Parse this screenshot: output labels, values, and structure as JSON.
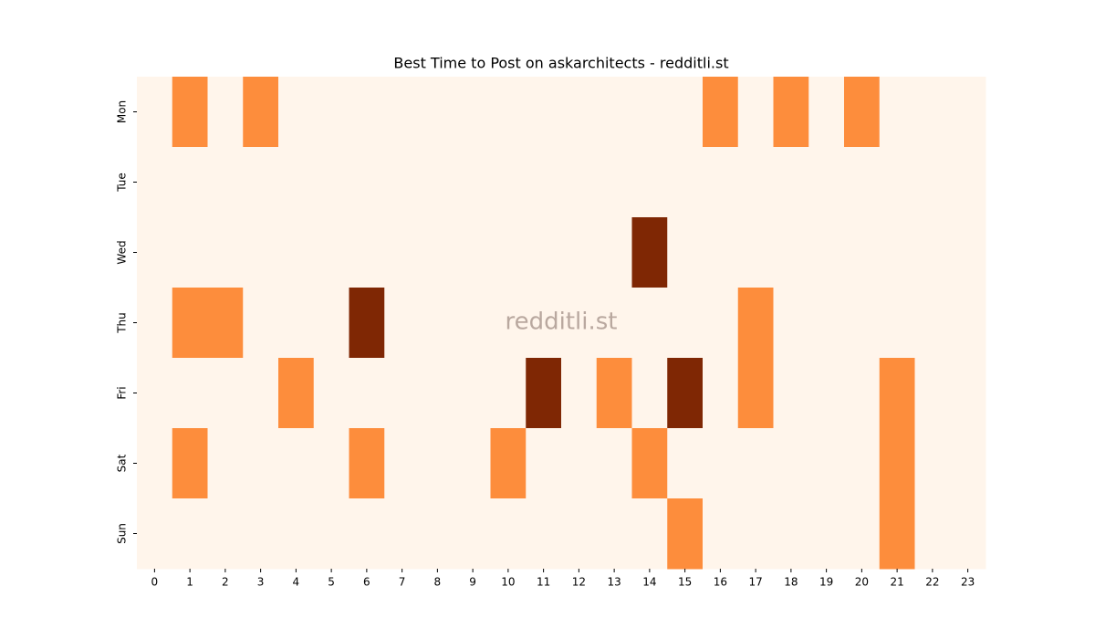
{
  "chart_data": {
    "type": "heatmap",
    "title": "Best Time to Post on askarchitects - redditli.st",
    "watermark": "redditli.st",
    "x": [
      0,
      1,
      2,
      3,
      4,
      5,
      6,
      7,
      8,
      9,
      10,
      11,
      12,
      13,
      14,
      15,
      16,
      17,
      18,
      19,
      20,
      21,
      22,
      23
    ],
    "y": [
      "Mon",
      "Tue",
      "Wed",
      "Thu",
      "Fri",
      "Sat",
      "Sun"
    ],
    "values": [
      [
        0,
        1,
        0,
        1,
        0,
        0,
        0,
        0,
        0,
        0,
        0,
        0,
        0,
        0,
        0,
        0,
        1,
        0,
        1,
        0,
        1,
        0,
        0,
        0
      ],
      [
        0,
        0,
        0,
        0,
        0,
        0,
        0,
        0,
        0,
        0,
        0,
        0,
        0,
        0,
        0,
        0,
        0,
        0,
        0,
        0,
        0,
        0,
        0,
        0
      ],
      [
        0,
        0,
        0,
        0,
        0,
        0,
        0,
        0,
        0,
        0,
        0,
        0,
        0,
        0,
        2,
        0,
        0,
        0,
        0,
        0,
        0,
        0,
        0,
        0
      ],
      [
        0,
        1,
        1,
        0,
        0,
        0,
        2,
        0,
        0,
        0,
        0,
        0,
        0,
        0,
        0,
        0,
        0,
        1,
        0,
        0,
        0,
        0,
        0,
        0
      ],
      [
        0,
        0,
        0,
        0,
        1,
        0,
        0,
        0,
        0,
        0,
        0,
        2,
        0,
        1,
        0,
        2,
        0,
        1,
        0,
        0,
        0,
        1,
        0,
        0
      ],
      [
        0,
        1,
        0,
        0,
        0,
        0,
        1,
        0,
        0,
        0,
        1,
        0,
        0,
        0,
        1,
        0,
        0,
        0,
        0,
        0,
        0,
        1,
        0,
        0
      ],
      [
        0,
        0,
        0,
        0,
        0,
        0,
        0,
        0,
        0,
        0,
        0,
        0,
        0,
        0,
        0,
        1,
        0,
        0,
        0,
        0,
        0,
        1,
        0,
        0
      ]
    ],
    "zlim": [
      0,
      2
    ],
    "colors": [
      "#fff5eb",
      "#fd8d3c",
      "#7f2704"
    ]
  }
}
